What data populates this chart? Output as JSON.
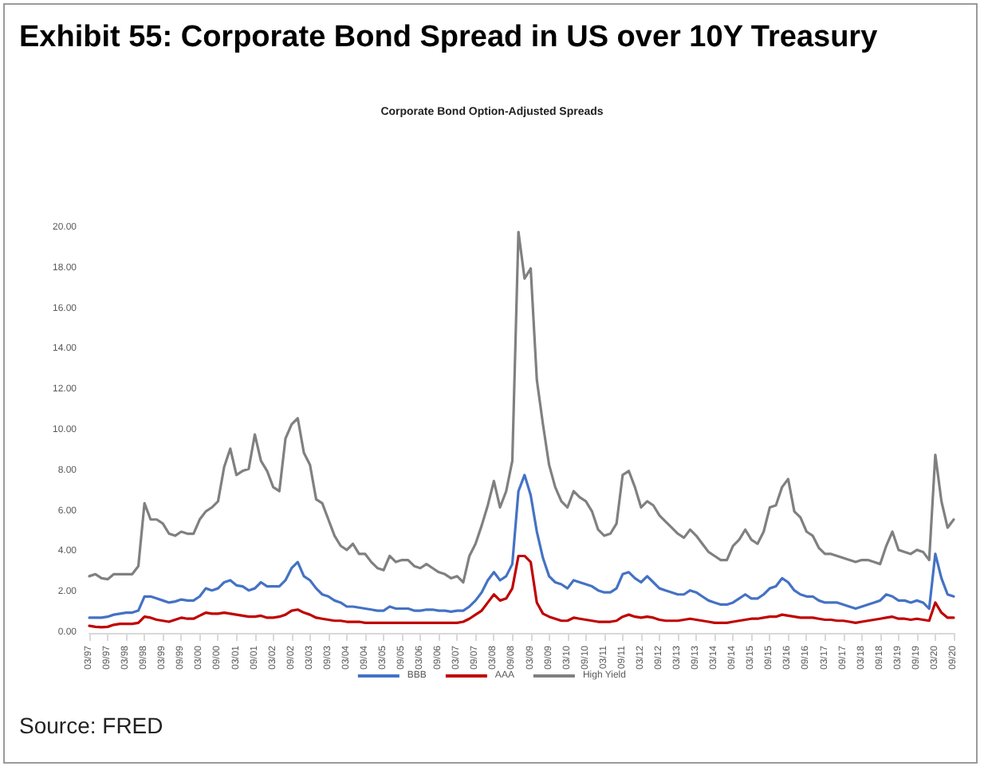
{
  "chart_data": {
    "type": "line",
    "title": "Exhibit 55: Corporate Bond Spread in US over 10Y Treasury",
    "subtitle": "Corporate Bond Option-Adjusted Spreads",
    "annotations": [
      "Source: FRED"
    ],
    "categories": [
      "03/97",
      null,
      null,
      "09/97",
      null,
      null,
      "03/98",
      null,
      null,
      "09/98",
      null,
      null,
      "03/99",
      null,
      null,
      "09/99",
      null,
      null,
      "03/00",
      null,
      null,
      "09/00",
      null,
      null,
      "03/01",
      null,
      null,
      "09/01",
      null,
      null,
      "03/02",
      null,
      null,
      "09/02",
      null,
      null,
      "03/03",
      null,
      null,
      "09/03",
      null,
      null,
      "03/04",
      null,
      null,
      "09/04",
      null,
      null,
      "03/05",
      null,
      null,
      "09/05",
      null,
      null,
      "03/06",
      null,
      null,
      "09/06",
      null,
      null,
      "03/07",
      null,
      null,
      "09/07",
      null,
      null,
      "03/08",
      null,
      null,
      "09/08",
      null,
      null,
      "03/09",
      null,
      null,
      "09/09",
      null,
      null,
      "03/10",
      null,
      null,
      "09/10",
      null,
      null,
      "03/11",
      null,
      null,
      "09/11",
      null,
      null,
      "03/12",
      null,
      null,
      "09/12",
      null,
      null,
      "03/13",
      null,
      null,
      "09/13",
      null,
      null,
      "03/14",
      null,
      null,
      "09/14",
      null,
      null,
      "03/15",
      null,
      null,
      "09/15",
      null,
      null,
      "03/16",
      null,
      null,
      "09/16",
      null,
      null,
      "03/17",
      null,
      null,
      "09/17",
      null,
      null,
      "03/18",
      null,
      null,
      "09/18",
      null,
      null,
      "03/19",
      null,
      null,
      "09/19",
      null,
      null,
      "03/20",
      null,
      null,
      "09/20"
    ],
    "series": [
      {
        "name": "BBB",
        "color": "#4472c4",
        "values": [
          0.75,
          0.75,
          0.75,
          0.8,
          0.9,
          0.95,
          1.0,
          1.0,
          1.1,
          1.8,
          1.8,
          1.7,
          1.6,
          1.5,
          1.55,
          1.65,
          1.6,
          1.6,
          1.8,
          2.2,
          2.1,
          2.2,
          2.5,
          2.6,
          2.35,
          2.3,
          2.1,
          2.2,
          2.5,
          2.3,
          2.3,
          2.3,
          2.6,
          3.2,
          3.5,
          2.8,
          2.6,
          2.2,
          1.9,
          1.8,
          1.6,
          1.5,
          1.3,
          1.3,
          1.25,
          1.2,
          1.15,
          1.1,
          1.1,
          1.3,
          1.2,
          1.2,
          1.2,
          1.1,
          1.1,
          1.15,
          1.15,
          1.1,
          1.1,
          1.05,
          1.1,
          1.1,
          1.3,
          1.6,
          2.0,
          2.6,
          3.0,
          2.6,
          2.8,
          3.4,
          7.0,
          7.8,
          6.8,
          5.0,
          3.7,
          2.8,
          2.5,
          2.4,
          2.2,
          2.6,
          2.5,
          2.4,
          2.3,
          2.1,
          2.0,
          2.0,
          2.2,
          2.9,
          3.0,
          2.7,
          2.5,
          2.8,
          2.5,
          2.2,
          2.1,
          2.0,
          1.9,
          1.9,
          2.1,
          2.0,
          1.8,
          1.6,
          1.5,
          1.4,
          1.4,
          1.5,
          1.7,
          1.9,
          1.7,
          1.7,
          1.9,
          2.2,
          2.3,
          2.7,
          2.5,
          2.1,
          1.9,
          1.8,
          1.8,
          1.6,
          1.5,
          1.5,
          1.5,
          1.4,
          1.3,
          1.2,
          1.3,
          1.4,
          1.5,
          1.6,
          1.9,
          1.8,
          1.6,
          1.6,
          1.5,
          1.6,
          1.5,
          1.2,
          3.9,
          2.7,
          1.9,
          1.8
        ]
      },
      {
        "name": "AAA",
        "color": "#c00000",
        "values": [
          0.35,
          0.3,
          0.28,
          0.3,
          0.4,
          0.45,
          0.45,
          0.45,
          0.5,
          0.8,
          0.75,
          0.65,
          0.6,
          0.55,
          0.65,
          0.75,
          0.7,
          0.7,
          0.85,
          1.0,
          0.95,
          0.95,
          1.0,
          0.95,
          0.9,
          0.85,
          0.8,
          0.8,
          0.85,
          0.75,
          0.75,
          0.8,
          0.9,
          1.1,
          1.15,
          1.0,
          0.9,
          0.75,
          0.7,
          0.65,
          0.6,
          0.6,
          0.55,
          0.55,
          0.55,
          0.5,
          0.5,
          0.5,
          0.5,
          0.5,
          0.5,
          0.5,
          0.5,
          0.5,
          0.5,
          0.5,
          0.5,
          0.5,
          0.5,
          0.5,
          0.5,
          0.55,
          0.7,
          0.9,
          1.1,
          1.5,
          1.9,
          1.6,
          1.7,
          2.2,
          3.8,
          3.8,
          3.5,
          1.5,
          0.95,
          0.8,
          0.7,
          0.6,
          0.6,
          0.75,
          0.7,
          0.65,
          0.6,
          0.55,
          0.55,
          0.55,
          0.6,
          0.8,
          0.9,
          0.8,
          0.75,
          0.8,
          0.75,
          0.65,
          0.6,
          0.6,
          0.6,
          0.65,
          0.7,
          0.65,
          0.6,
          0.55,
          0.5,
          0.5,
          0.5,
          0.55,
          0.6,
          0.65,
          0.7,
          0.7,
          0.75,
          0.8,
          0.8,
          0.9,
          0.85,
          0.8,
          0.75,
          0.75,
          0.75,
          0.7,
          0.65,
          0.65,
          0.6,
          0.6,
          0.55,
          0.5,
          0.55,
          0.6,
          0.65,
          0.7,
          0.75,
          0.8,
          0.7,
          0.7,
          0.65,
          0.7,
          0.65,
          0.6,
          1.5,
          1.0,
          0.75,
          0.75
        ]
      },
      {
        "name": "High Yield",
        "color": "#808080",
        "values": [
          2.8,
          2.9,
          2.7,
          2.65,
          2.9,
          2.9,
          2.9,
          2.9,
          3.3,
          6.4,
          5.6,
          5.6,
          5.4,
          4.9,
          4.8,
          5.0,
          4.9,
          4.9,
          5.6,
          6.0,
          6.2,
          6.5,
          8.2,
          9.1,
          7.8,
          8.0,
          8.1,
          9.8,
          8.5,
          8.0,
          7.2,
          7.0,
          9.6,
          10.3,
          10.6,
          8.9,
          8.3,
          6.6,
          6.4,
          5.6,
          4.8,
          4.3,
          4.1,
          4.4,
          3.9,
          3.9,
          3.5,
          3.2,
          3.1,
          3.8,
          3.5,
          3.6,
          3.6,
          3.3,
          3.2,
          3.4,
          3.2,
          3.0,
          2.9,
          2.7,
          2.8,
          2.5,
          3.8,
          4.4,
          5.3,
          6.3,
          7.5,
          6.2,
          7.0,
          8.5,
          19.8,
          17.5,
          18.0,
          12.5,
          10.3,
          8.3,
          7.2,
          6.5,
          6.2,
          7.0,
          6.7,
          6.5,
          6.0,
          5.1,
          4.8,
          4.9,
          5.4,
          7.8,
          8.0,
          7.2,
          6.2,
          6.5,
          6.3,
          5.8,
          5.5,
          5.2,
          4.9,
          4.7,
          5.1,
          4.8,
          4.4,
          4.0,
          3.8,
          3.6,
          3.6,
          4.3,
          4.6,
          5.1,
          4.6,
          4.4,
          5.0,
          6.2,
          6.3,
          7.2,
          7.6,
          6.0,
          5.7,
          5.0,
          4.8,
          4.2,
          3.9,
          3.9,
          3.8,
          3.7,
          3.6,
          3.5,
          3.6,
          3.6,
          3.5,
          3.4,
          4.3,
          5.0,
          4.1,
          4.0,
          3.9,
          4.1,
          4.0,
          3.6,
          8.8,
          6.5,
          5.2,
          5.6
        ]
      }
    ],
    "ylim": [
      0,
      20
    ],
    "yticks": [
      {
        "value": 0,
        "label": "0.00"
      },
      {
        "value": 2,
        "label": "2.00"
      },
      {
        "value": 4,
        "label": "4.00"
      },
      {
        "value": 6,
        "label": "6.00"
      },
      {
        "value": 8,
        "label": "8.00"
      },
      {
        "value": 10,
        "label": "10.00"
      },
      {
        "value": 12,
        "label": "12.00"
      },
      {
        "value": 14,
        "label": "14.00"
      },
      {
        "value": 16,
        "label": "16.00"
      },
      {
        "value": 18,
        "label": "18.00"
      },
      {
        "value": 20,
        "label": "20.00"
      }
    ],
    "grid": false,
    "legend": "bottom",
    "marker": "none",
    "line_style": "solid"
  }
}
